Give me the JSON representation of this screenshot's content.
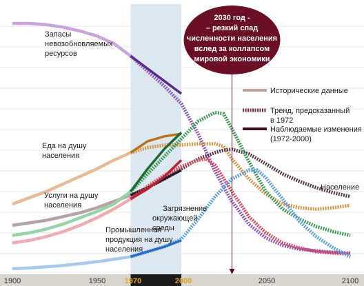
{
  "chart_data": {
    "type": "line",
    "xlabel": "",
    "ylabel": "",
    "xlim": [
      1900,
      2100
    ],
    "x_ticks": [
      "1900",
      "1950",
      "1970",
      "2000",
      "2050",
      "2100"
    ],
    "highlight_period": [
      1970,
      2000
    ],
    "callout": {
      "lines": [
        "2030 год -",
        "– резкий спад",
        "численности населения",
        "вслед за коллапсом",
        "мировой экономики"
      ],
      "year": 2030
    },
    "legend": {
      "position": "right",
      "items": [
        {
          "label_lines": [
            "Исторические данные"
          ],
          "style": "historical",
          "color": "#c9a29c"
        },
        {
          "label_lines": [
            "Тренд, предсказанный",
            "в 1972"
          ],
          "style": "predicted",
          "color": "#7a2a3a"
        },
        {
          "label_lines": [
            "Наблюдаемые изменения",
            "(1972-2000)"
          ],
          "style": "observed",
          "color": "#3a0f18"
        }
      ]
    },
    "series": [
      {
        "name": "Запасы невозобновляемых ресурсов",
        "label_lines": [
          "Запасы",
          "невозобновляемых",
          "ресурсов"
        ],
        "colors": {
          "historical": "#c8a6dc",
          "predicted": "#8a5ab4",
          "observed": "#5a2a8a"
        },
        "historical": [
          [
            1900,
            100
          ],
          [
            1910,
            100
          ],
          [
            1920,
            99.5
          ],
          [
            1930,
            98.5
          ],
          [
            1940,
            97
          ],
          [
            1950,
            95
          ],
          [
            1960,
            92
          ],
          [
            1970,
            87
          ]
        ],
        "predicted": [
          [
            1970,
            87
          ],
          [
            1980,
            81
          ],
          [
            1990,
            75
          ],
          [
            2000,
            68
          ],
          [
            2010,
            56
          ],
          [
            2020,
            41
          ],
          [
            2030,
            29
          ],
          [
            2040,
            20
          ],
          [
            2050,
            14.5
          ],
          [
            2060,
            11.5
          ],
          [
            2070,
            10
          ],
          [
            2080,
            9.3
          ],
          [
            2090,
            8.8
          ],
          [
            2100,
            8.5
          ]
        ],
        "observed": [
          [
            1970,
            87
          ],
          [
            1980,
            82
          ],
          [
            1990,
            77
          ],
          [
            2000,
            72
          ]
        ]
      },
      {
        "name": "Еда на душу населения",
        "label_lines": [
          "Еда на душу",
          "населения"
        ],
        "colors": {
          "historical": "#e6bc98",
          "predicted": "#d6934a",
          "observed": "#b8721e"
        },
        "historical": [
          [
            1900,
            28
          ],
          [
            1910,
            30.5
          ],
          [
            1920,
            33
          ],
          [
            1930,
            36
          ],
          [
            1940,
            39
          ],
          [
            1950,
            42
          ],
          [
            1960,
            45.5
          ],
          [
            1970,
            48.5
          ]
        ],
        "predicted": [
          [
            1970,
            48.5
          ],
          [
            1980,
            50.5
          ],
          [
            1990,
            51.5
          ],
          [
            2000,
            51.5
          ],
          [
            2010,
            52
          ],
          [
            2020,
            52
          ],
          [
            2025,
            51
          ],
          [
            2030,
            46
          ],
          [
            2040,
            38
          ],
          [
            2050,
            32
          ],
          [
            2060,
            28
          ],
          [
            2070,
            26.5
          ],
          [
            2080,
            26
          ],
          [
            2090,
            26.5
          ],
          [
            2100,
            27.5
          ]
        ],
        "observed": [
          [
            1970,
            48.5
          ],
          [
            1980,
            53
          ],
          [
            1990,
            55
          ],
          [
            2000,
            56
          ]
        ]
      },
      {
        "name": "Население",
        "label_lines": [
          "Население"
        ],
        "colors": {
          "historical": "#b3a2a6",
          "predicted": "#53394a",
          "observed": "#2b1722"
        },
        "historical": [
          [
            1900,
            19.5
          ],
          [
            1910,
            20.5
          ],
          [
            1920,
            21.5
          ],
          [
            1930,
            23
          ],
          [
            1940,
            24.5
          ],
          [
            1950,
            26.5
          ],
          [
            1960,
            29
          ],
          [
            1970,
            31.5
          ]
        ],
        "predicted": [
          [
            1970,
            31.5
          ],
          [
            1980,
            34.5
          ],
          [
            1990,
            38
          ],
          [
            2000,
            42
          ],
          [
            2010,
            46
          ],
          [
            2020,
            48.5
          ],
          [
            2025,
            49.5
          ],
          [
            2030,
            49.8
          ],
          [
            2040,
            48
          ],
          [
            2050,
            44
          ],
          [
            2060,
            40
          ],
          [
            2070,
            37
          ],
          [
            2080,
            34.5
          ],
          [
            2090,
            32.5
          ],
          [
            2100,
            31
          ]
        ],
        "observed": [
          [
            1970,
            31.5
          ],
          [
            1980,
            34.5
          ],
          [
            1990,
            38
          ],
          [
            2000,
            41.5
          ]
        ]
      },
      {
        "name": "Услуги на душу населения",
        "label_lines": [
          "Услуги на душу",
          "населения"
        ],
        "colors": {
          "historical": "#98d2a6",
          "predicted": "#3f9a56",
          "observed": "#1e6a32"
        },
        "historical": [
          [
            1900,
            15.5
          ],
          [
            1910,
            16.5
          ],
          [
            1920,
            18
          ],
          [
            1930,
            20
          ],
          [
            1940,
            22.5
          ],
          [
            1950,
            25
          ],
          [
            1960,
            28
          ],
          [
            1970,
            33
          ]
        ],
        "predicted": [
          [
            1970,
            33
          ],
          [
            1980,
            40
          ],
          [
            1990,
            47
          ],
          [
            2000,
            54
          ],
          [
            2010,
            61
          ],
          [
            2020,
            64.5
          ],
          [
            2025,
            64
          ],
          [
            2030,
            58
          ],
          [
            2040,
            45
          ],
          [
            2050,
            33
          ],
          [
            2060,
            26
          ],
          [
            2070,
            22
          ],
          [
            2080,
            19
          ],
          [
            2090,
            17
          ],
          [
            2100,
            15.5
          ]
        ],
        "observed": [
          [
            1970,
            33
          ],
          [
            1980,
            42
          ],
          [
            1990,
            50
          ],
          [
            2000,
            56.5
          ]
        ]
      },
      {
        "name": "Промышленная продукция на душу населения",
        "label_lines": [
          "Промышленная",
          "продукция на душу",
          "населения"
        ],
        "colors": {
          "historical": "#f0aab2",
          "predicted": "#d94a60",
          "observed": "#b82234"
        },
        "historical": [
          [
            1900,
            12.5
          ],
          [
            1910,
            13.5
          ],
          [
            1920,
            15
          ],
          [
            1930,
            17
          ],
          [
            1940,
            19.5
          ],
          [
            1950,
            22.5
          ],
          [
            1960,
            26
          ],
          [
            1970,
            30
          ]
        ],
        "predicted": [
          [
            1970,
            30
          ],
          [
            1980,
            35
          ],
          [
            1990,
            39.5
          ],
          [
            2000,
            43
          ],
          [
            2010,
            45.5
          ],
          [
            2015,
            46
          ],
          [
            2020,
            43.5
          ],
          [
            2030,
            33
          ],
          [
            2040,
            23
          ],
          [
            2050,
            16.5
          ],
          [
            2060,
            12.5
          ],
          [
            2070,
            10.5
          ],
          [
            2080,
            9
          ],
          [
            2090,
            8.5
          ],
          [
            2100,
            8
          ]
        ],
        "observed": [
          [
            1970,
            30
          ],
          [
            1980,
            34
          ],
          [
            1990,
            39
          ],
          [
            2000,
            45.5
          ]
        ]
      },
      {
        "name": "Загрязнение окружающей среды",
        "label_lines": [
          "Загрязнение",
          "окружающей",
          "среды"
        ],
        "colors": {
          "historical": "#a8c8ec",
          "predicted": "#5aa0dc",
          "observed": "#2a6ec4"
        },
        "historical": [
          [
            1900,
            2.2
          ],
          [
            1910,
            2.5
          ],
          [
            1920,
            3
          ],
          [
            1930,
            3.5
          ],
          [
            1940,
            4.2
          ],
          [
            1950,
            5
          ],
          [
            1960,
            6
          ],
          [
            1970,
            7
          ]
        ],
        "predicted": [
          [
            1970,
            7
          ],
          [
            1980,
            9
          ],
          [
            1990,
            11
          ],
          [
            2000,
            14
          ],
          [
            2010,
            22
          ],
          [
            2020,
            31
          ],
          [
            2030,
            38
          ],
          [
            2040,
            41.5
          ],
          [
            2045,
            41.5
          ],
          [
            2050,
            38.5
          ],
          [
            2060,
            30
          ],
          [
            2070,
            21
          ],
          [
            2080,
            15
          ],
          [
            2090,
            10.5
          ],
          [
            2100,
            7
          ]
        ],
        "observed": [
          [
            1970,
            7
          ],
          [
            1980,
            9
          ],
          [
            1990,
            11
          ],
          [
            2000,
            13.5
          ]
        ]
      }
    ]
  }
}
